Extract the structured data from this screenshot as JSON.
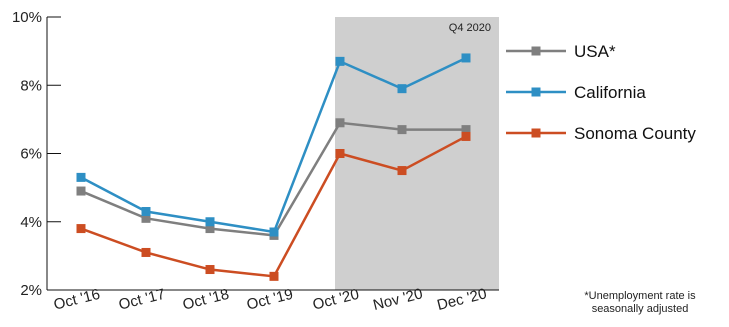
{
  "chart_data": {
    "type": "line",
    "categories": [
      "Oct '16",
      "Oct '17",
      "Oct '18",
      "Oct '19",
      "Oct '20",
      "Nov '20",
      "Dec '20"
    ],
    "ylim": [
      2,
      10
    ],
    "yticks": [
      "2%",
      "4%",
      "6%",
      "8%",
      "10%"
    ],
    "ytick_values": [
      2,
      4,
      6,
      8,
      10
    ],
    "highlight": {
      "label": "Q4 2020",
      "from_index": 4,
      "to_index": 6,
      "color": "#cfcfcf"
    },
    "series": [
      {
        "name": "USA*",
        "color": "#7f7f7f",
        "values": [
          4.9,
          4.1,
          3.8,
          3.6,
          6.9,
          6.7,
          6.7
        ]
      },
      {
        "name": "California",
        "color": "#2e8fc4",
        "values": [
          5.3,
          4.3,
          4.0,
          3.7,
          8.7,
          7.9,
          8.8
        ]
      },
      {
        "name": "Sonoma County",
        "color": "#cc4d22",
        "values": [
          3.8,
          3.1,
          2.6,
          2.4,
          6.0,
          5.5,
          6.5
        ]
      }
    ],
    "legend_position": "right",
    "grid": false
  },
  "footnote": {
    "line1": "*Unemployment rate is",
    "line2": "seasonally adjusted"
  }
}
